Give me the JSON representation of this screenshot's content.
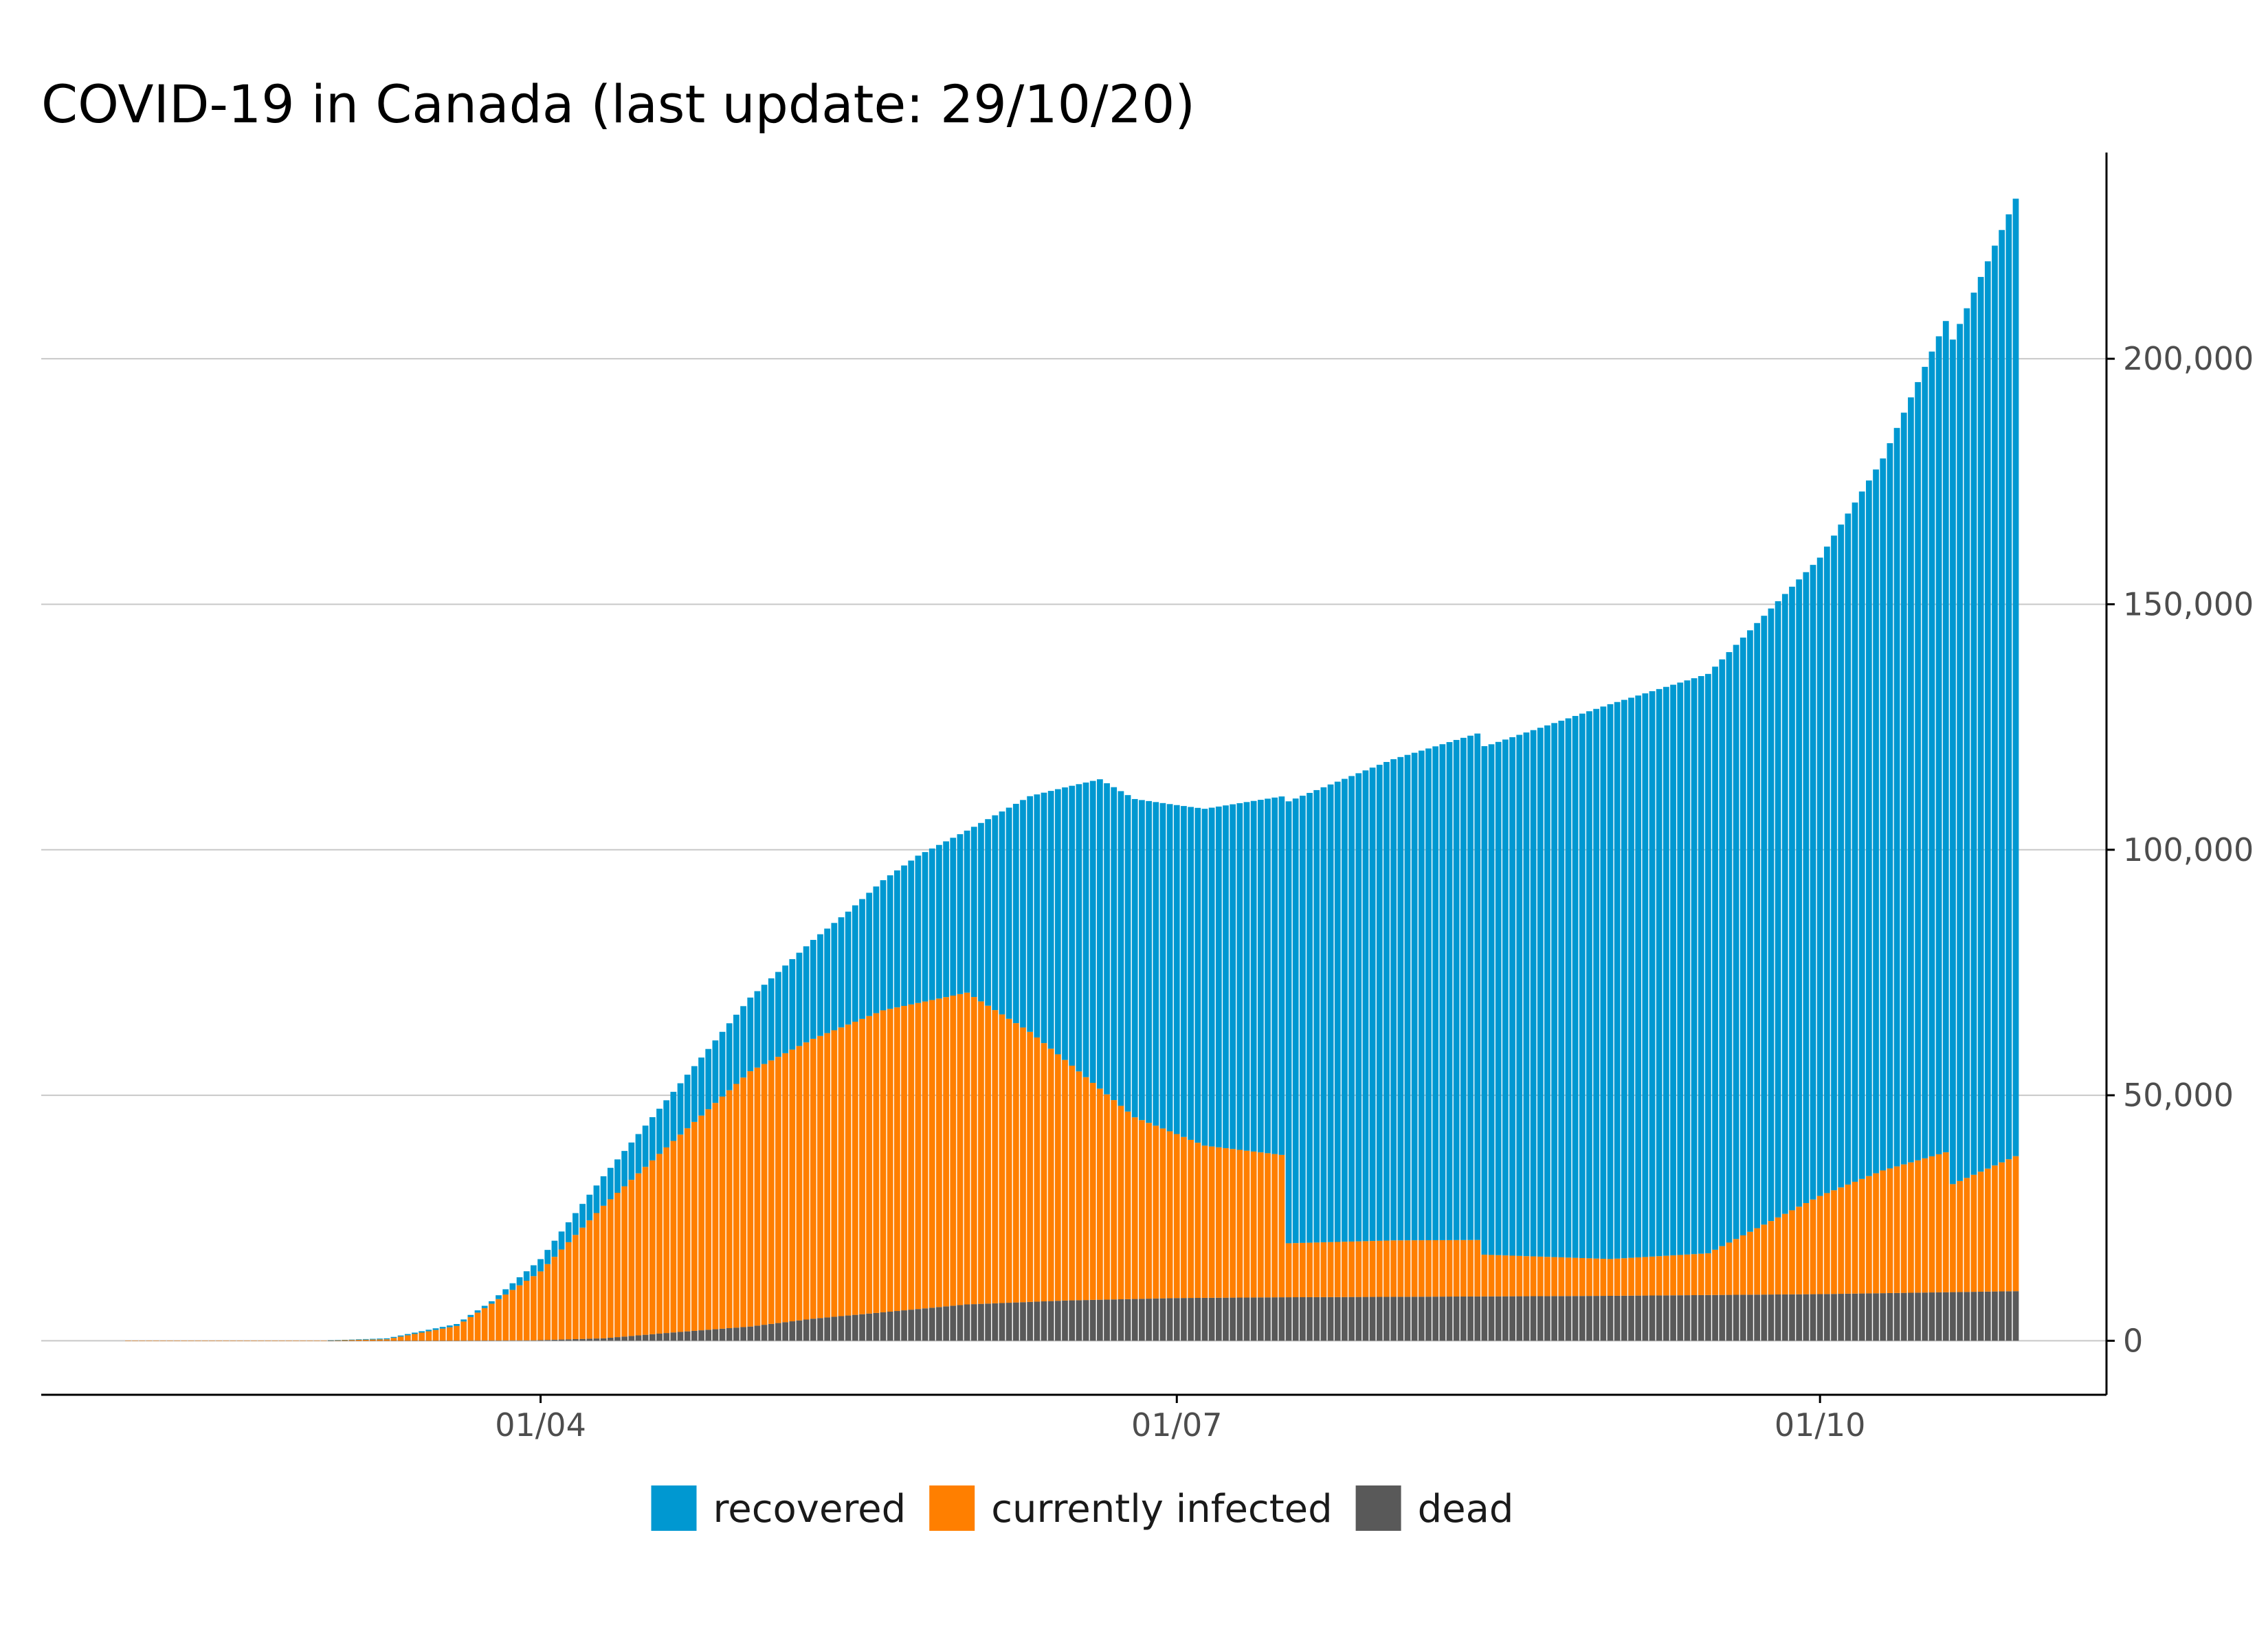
{
  "chart_data": {
    "type": "bar",
    "stacked": true,
    "title": "COVID-19 in Canada (last update: 29/10/20)",
    "xlabel": "",
    "ylabel": "",
    "x_start": "2020-01-25",
    "x_end": "2020-10-29",
    "x_ticks": [
      {
        "date": "2020-04-01",
        "label": "01/04"
      },
      {
        "date": "2020-07-01",
        "label": "01/07"
      },
      {
        "date": "2020-10-01",
        "label": "01/10"
      }
    ],
    "y_ticks": [
      {
        "value": 0,
        "label": "0"
      },
      {
        "value": 50000,
        "label": "50,000"
      },
      {
        "value": 100000,
        "label": "100,000"
      },
      {
        "value": 150000,
        "label": "150,000"
      },
      {
        "value": 200000,
        "label": "200,000"
      }
    ],
    "ylim": [
      -11000,
      242000
    ],
    "y_axis_position": "right",
    "grid": "horizontal",
    "legend_position": "bottom",
    "series": [
      {
        "name": "dead",
        "color": "#595959",
        "points": [
          [
            "2020-03-01",
            0
          ],
          [
            "2020-03-20",
            15
          ],
          [
            "2020-03-31",
            90
          ],
          [
            "2020-04-10",
            500
          ],
          [
            "2020-04-20",
            1700
          ],
          [
            "2020-05-01",
            2900
          ],
          [
            "2020-05-10",
            4500
          ],
          [
            "2020-05-20",
            5800
          ],
          [
            "2020-06-01",
            7400
          ],
          [
            "2020-06-15",
            8200
          ],
          [
            "2020-07-01",
            8700
          ],
          [
            "2020-07-15",
            8850
          ],
          [
            "2020-08-01",
            8950
          ],
          [
            "2020-09-01",
            9150
          ],
          [
            "2020-10-01",
            9500
          ],
          [
            "2020-10-29",
            10100
          ]
        ]
      },
      {
        "name": "currently infected",
        "color": "#ff7f00",
        "points": [
          [
            "2020-02-01",
            0
          ],
          [
            "2020-03-01",
            50
          ],
          [
            "2020-03-10",
            300
          ],
          [
            "2020-03-20",
            3000
          ],
          [
            "2020-03-25",
            7500
          ],
          [
            "2020-04-01",
            14000
          ],
          [
            "2020-04-10",
            27000
          ],
          [
            "2020-04-20",
            39000
          ],
          [
            "2020-05-01",
            52000
          ],
          [
            "2020-05-10",
            57000
          ],
          [
            "2020-05-20",
            61500
          ],
          [
            "2020-06-01",
            63500
          ],
          [
            "2020-06-10",
            55000
          ],
          [
            "2020-06-25",
            37000
          ],
          [
            "2020-07-05",
            31000
          ],
          [
            "2020-07-16",
            29000
          ],
          [
            "2020-07-17",
            11000
          ],
          [
            "2020-08-01",
            11500
          ],
          [
            "2020-08-13",
            11500
          ],
          [
            "2020-08-14",
            8500
          ],
          [
            "2020-09-01",
            7500
          ],
          [
            "2020-09-15",
            8500
          ],
          [
            "2020-10-01",
            20000
          ],
          [
            "2020-10-10",
            25000
          ],
          [
            "2020-10-19",
            28500
          ],
          [
            "2020-10-20",
            22000
          ],
          [
            "2020-10-29",
            27500
          ]
        ]
      },
      {
        "name": "recovered",
        "color": "#0098d1",
        "points": [
          [
            "2020-03-01",
            0
          ],
          [
            "2020-03-25",
            500
          ],
          [
            "2020-04-01",
            2500
          ],
          [
            "2020-04-10",
            6000
          ],
          [
            "2020-04-20",
            10000
          ],
          [
            "2020-05-01",
            15000
          ],
          [
            "2020-05-15",
            23000
          ],
          [
            "2020-05-25",
            30000
          ],
          [
            "2020-06-01",
            33000
          ],
          [
            "2020-06-10",
            48000
          ],
          [
            "2020-06-20",
            63000
          ],
          [
            "2020-07-01",
            67000
          ],
          [
            "2020-07-16",
            73000
          ],
          [
            "2020-07-17",
            90000
          ],
          [
            "2020-08-01",
            98000
          ],
          [
            "2020-08-15",
            104000
          ],
          [
            "2020-09-01",
            113000
          ],
          [
            "2020-09-15",
            118000
          ],
          [
            "2020-10-01",
            130000
          ],
          [
            "2020-10-10",
            145000
          ],
          [
            "2020-10-20",
            172000
          ],
          [
            "2020-10-29",
            195000
          ]
        ]
      }
    ]
  }
}
